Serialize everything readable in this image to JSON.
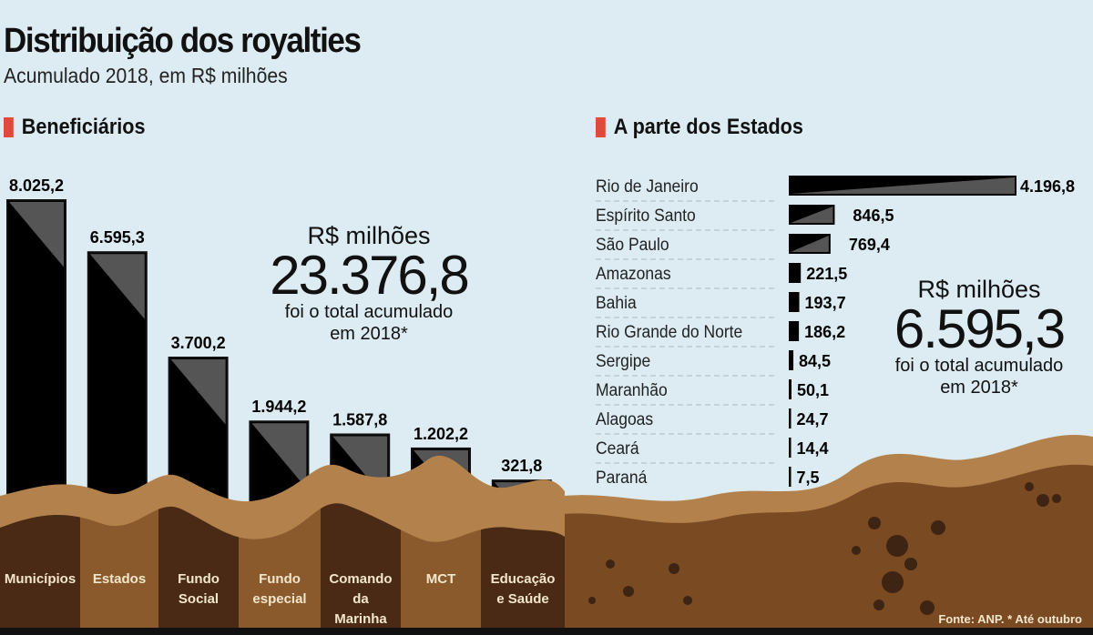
{
  "title": "Distribuição dos royalties",
  "subtitle": "Acumulado 2018, em R$ milhões",
  "colors": {
    "accent": "#e04a3c",
    "bar": "#000000",
    "bar_shade": "#555555",
    "earth_dark": "#4a2a14",
    "earth_mid": "#8a5a2c",
    "earth_band": "#b3824c",
    "earth_right": "#7a4a22"
  },
  "left_panel": {
    "heading": "Beneficiários",
    "callout": {
      "unit": "R$ milhões",
      "value": "23.376,8",
      "line1": "foi o total acumulado",
      "line2": "em 2018*"
    }
  },
  "right_panel": {
    "heading": "A parte dos Estados",
    "callout": {
      "unit": "R$ milhões",
      "value": "6.595,3",
      "line1": "foi o total acumulado",
      "line2": "em 2018*"
    }
  },
  "source": "Fonte: ANP. * Até outubro",
  "chart_data": [
    {
      "type": "bar",
      "title": "Beneficiários",
      "categories": [
        "Municípios",
        "Estados",
        "Fundo Social",
        "Fundo especial",
        "Comando da Marinha",
        "MCT",
        "Educação e Saúde"
      ],
      "values": [
        8025.2,
        6595.3,
        3700.2,
        1944.2,
        1587.8,
        1202.2,
        321.8
      ],
      "labels": [
        "8.025,2",
        "6.595,3",
        "3.700,2",
        "1.944,2",
        "1.587,8",
        "1.202,2",
        "321,8"
      ],
      "orientation": "vertical"
    },
    {
      "type": "bar",
      "title": "A parte dos Estados",
      "categories": [
        "Rio de Janeiro",
        "Espírito Santo",
        "São Paulo",
        "Amazonas",
        "Bahia",
        "Rio Grande do Norte",
        "Sergipe",
        "Maranhão",
        "Alagoas",
        "Ceará",
        "Paraná"
      ],
      "values": [
        4196.8,
        846.5,
        769.4,
        221.5,
        193.7,
        186.2,
        84.5,
        50.1,
        24.7,
        14.4,
        7.5
      ],
      "labels": [
        "4.196,8",
        "846,5",
        "769,4",
        "221,5",
        "193,7",
        "186,2",
        "84,5",
        "50,1",
        "24,7",
        "14,4",
        "7,5"
      ],
      "orientation": "horizontal"
    }
  ]
}
